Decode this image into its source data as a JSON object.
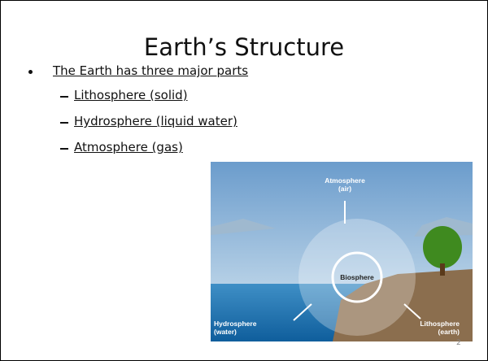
{
  "slide": {
    "title": "Earth’s Structure",
    "bullet": "The Earth has three major parts",
    "sub_bullets": [
      "Lithosphere (solid)",
      "Hydrosphere (liquid water)",
      "Atmosphere (gas)"
    ],
    "figure_labels": [
      {
        "name": "Atmosphere",
        "note": "(air)"
      },
      {
        "name": "Biosphere"
      },
      {
        "name": "Hydrosphere",
        "note": "(water)"
      },
      {
        "name": "Lithosphere",
        "note": "(earth)"
      }
    ],
    "page_number": "2"
  }
}
